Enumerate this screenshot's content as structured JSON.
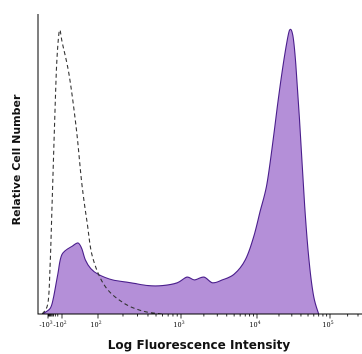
{
  "chart_data": {
    "type": "area",
    "title": "",
    "xlabel": "Log Fluorescence Intensity",
    "ylabel": "Relative Cell Number",
    "x_scale": "biexponential",
    "xlim": [
      -2000,
      300000
    ],
    "ylim": [
      0,
      100
    ],
    "grid": false,
    "legend": "none",
    "x_ticks": [
      {
        "value": -1000,
        "base": "-10",
        "exp": "3"
      },
      {
        "value": -100,
        "base": "-10",
        "exp": "2"
      },
      {
        "value": 100,
        "base": "10",
        "exp": "2"
      },
      {
        "value": 1000,
        "base": "10",
        "exp": "3"
      },
      {
        "value": 10000,
        "base": "10",
        "exp": "4"
      },
      {
        "value": 100000,
        "base": "10",
        "exp": "5"
      }
    ],
    "series": [
      {
        "style": "filled",
        "color": "#b48fd8",
        "edge_color": "#4a1e8c",
        "points": [
          [
            -1500,
            0
          ],
          [
            -700,
            2
          ],
          [
            -400,
            6
          ],
          [
            -200,
            14
          ],
          [
            -100,
            21
          ],
          [
            -40,
            24
          ],
          [
            -10,
            25
          ],
          [
            10,
            23
          ],
          [
            30,
            19
          ],
          [
            60,
            16
          ],
          [
            100,
            14
          ],
          [
            150,
            12
          ],
          [
            250,
            11
          ],
          [
            400,
            10
          ],
          [
            600,
            10
          ],
          [
            900,
            11
          ],
          [
            1200,
            13
          ],
          [
            1500,
            12
          ],
          [
            2000,
            13
          ],
          [
            2600,
            11
          ],
          [
            3500,
            12
          ],
          [
            5000,
            14
          ],
          [
            7000,
            19
          ],
          [
            9000,
            27
          ],
          [
            11000,
            36
          ],
          [
            13500,
            45
          ],
          [
            16000,
            58
          ],
          [
            19000,
            73
          ],
          [
            22000,
            85
          ],
          [
            25000,
            94
          ],
          [
            28000,
            100
          ],
          [
            31000,
            98
          ],
          [
            34000,
            88
          ],
          [
            39000,
            65
          ],
          [
            45000,
            38
          ],
          [
            52000,
            18
          ],
          [
            60000,
            6
          ],
          [
            70000,
            0
          ]
        ]
      },
      {
        "style": "dashed",
        "color": "#333333",
        "points": [
          [
            -1500,
            0
          ],
          [
            -1000,
            4
          ],
          [
            -700,
            18
          ],
          [
            -500,
            40
          ],
          [
            -350,
            65
          ],
          [
            -250,
            86
          ],
          [
            -180,
            97
          ],
          [
            -140,
            100
          ],
          [
            -100,
            96
          ],
          [
            -60,
            84
          ],
          [
            -20,
            65
          ],
          [
            10,
            46
          ],
          [
            40,
            32
          ],
          [
            70,
            20
          ],
          [
            120,
            10
          ],
          [
            200,
            4
          ],
          [
            350,
            1
          ],
          [
            600,
            0
          ]
        ]
      }
    ]
  }
}
